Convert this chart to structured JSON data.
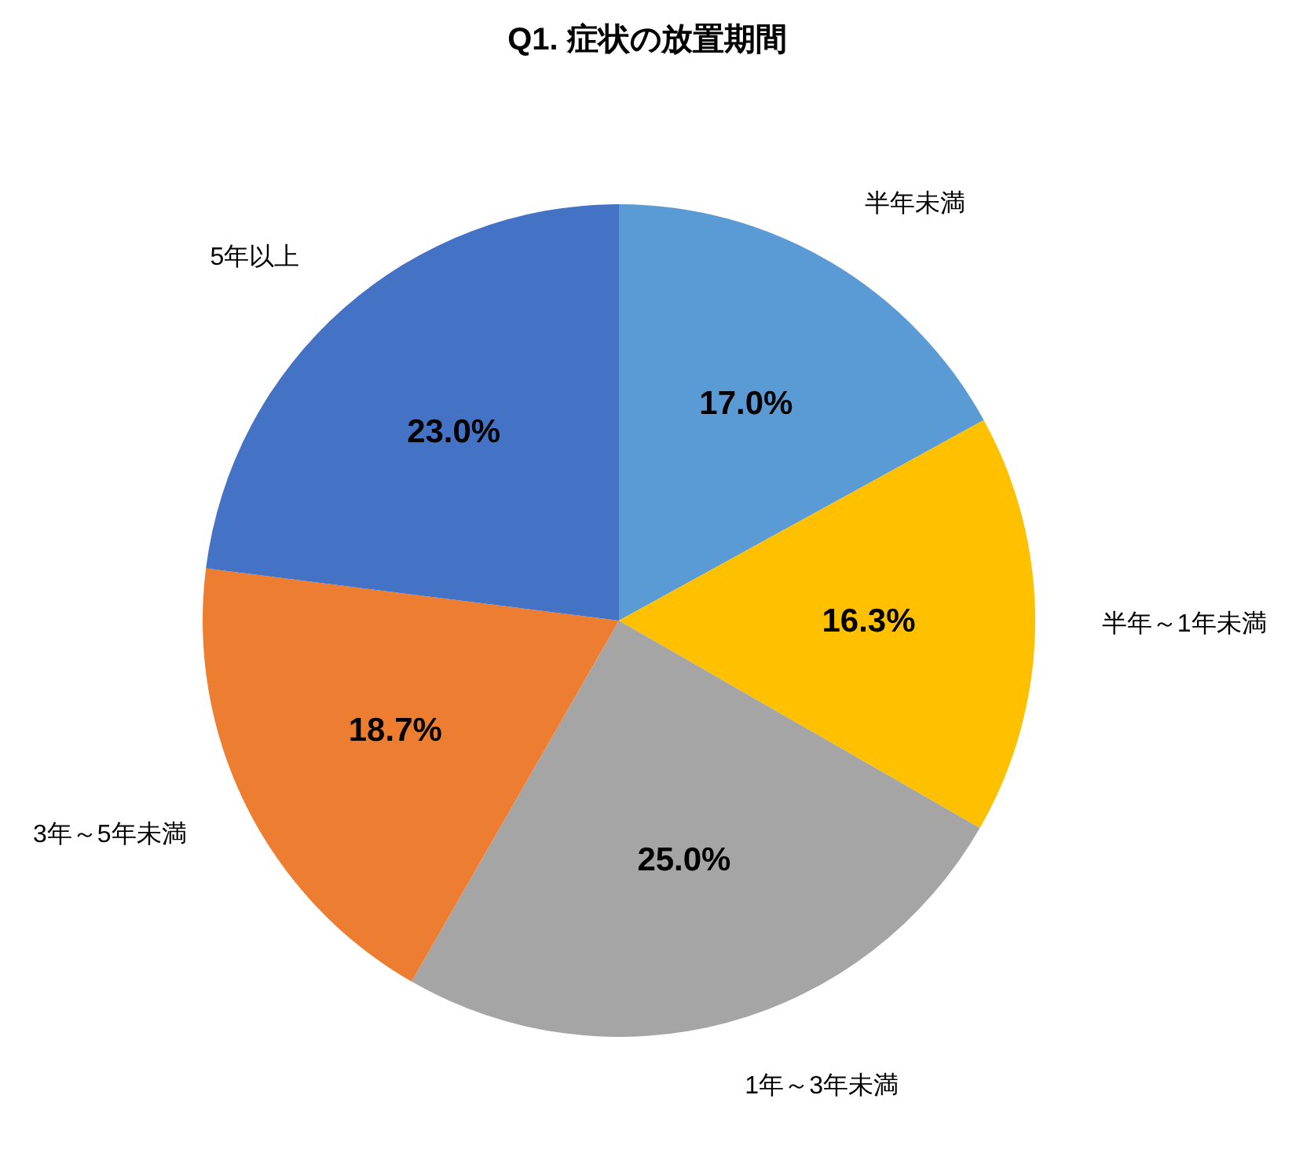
{
  "chart_data": {
    "type": "pie",
    "title": "Q1. 症状の放置期間",
    "categories": [
      "半年未満",
      "半年～1年未満",
      "1年～3年未満",
      "3年～5年未満",
      "5年以上"
    ],
    "values": [
      17.0,
      16.3,
      25.0,
      18.7,
      23.0
    ],
    "value_labels": [
      "17.0%",
      "16.3%",
      "25.0%",
      "18.7%",
      "23.0%"
    ],
    "colors": [
      "#5b9bd5",
      "#ffc000",
      "#a5a5a5",
      "#ed7d31",
      "#4472c4"
    ],
    "legend": false
  }
}
